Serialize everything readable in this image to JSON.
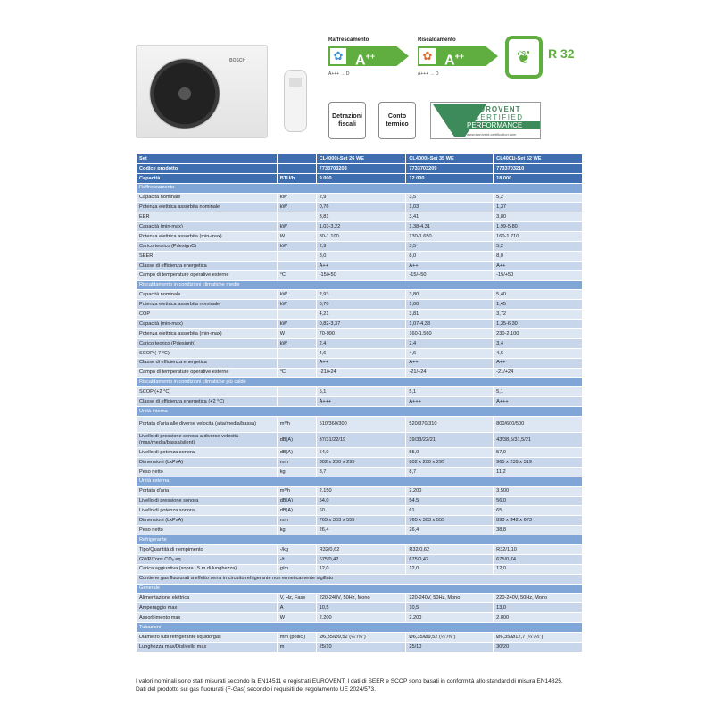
{
  "product_images": {
    "brand": "BOSCH"
  },
  "energy_labels": [
    {
      "title": "Raffrescamento",
      "grade": "A",
      "grade_sup": "++",
      "scale": "A+++ → D",
      "icon": "fan-icon",
      "icon_color": "#3b8fd6"
    },
    {
      "title": "Riscaldamento",
      "grade": "A",
      "grade_sup": "++",
      "scale": "A+++ → D",
      "icon": "fan-icon",
      "icon_color": "#e06a2a"
    }
  ],
  "refrigerant": {
    "label": "R 32",
    "icon": "leaf-icon"
  },
  "badges": [
    "Detrazioni fiscali",
    "Conto termico"
  ],
  "eurovent": {
    "line1": "EUROVENT",
    "line2": "CERTIFIED",
    "line3": "PERFORMANCE",
    "url": "www.eurovent-certification.com"
  },
  "colors": {
    "header": "#3e6eb0",
    "section": "#7fa6d6",
    "row_a": "#dde6f3",
    "row_b": "#c8d6ec",
    "green": "#5fae3f"
  },
  "table": [
    {
      "type": "hdr",
      "cells": [
        "Set",
        "",
        "CL4000i-Set 26 WE",
        "CL4000i-Set 35 WE",
        "CL4001i-Set 52 WE"
      ]
    },
    {
      "type": "hdr",
      "cells": [
        "Codice prodotto",
        "",
        "7733703208",
        "7733703209",
        "7733703210"
      ]
    },
    {
      "type": "hdr",
      "cells": [
        "Capacità",
        "BTU/h",
        "9.000",
        "12.000",
        "18.000"
      ]
    },
    {
      "type": "sec",
      "cells": [
        "Raffrescamento"
      ]
    },
    {
      "type": "d",
      "cells": [
        "Capacità nominale",
        "kW",
        "2,9",
        "3,5",
        "5,2"
      ]
    },
    {
      "type": "d",
      "cells": [
        "Potenza elettrica assorbita nominale",
        "kW",
        "0,76",
        "1,03",
        "1,37"
      ]
    },
    {
      "type": "d",
      "cells": [
        "EER",
        "",
        "3,81",
        "3,41",
        "3,80"
      ]
    },
    {
      "type": "d",
      "cells": [
        "Capacità (min-max)",
        "kW",
        "1,03-3,22",
        "1,38-4,31",
        "1,99-5,80"
      ]
    },
    {
      "type": "d",
      "cells": [
        "Potenza elettrica assorbita (min-max)",
        "W",
        "80-1.100",
        "130-1.650",
        "160-1.710"
      ]
    },
    {
      "type": "d",
      "cells": [
        "Carico teorico (PdesignC)",
        "kW",
        "2,9",
        "3,5",
        "5,2"
      ]
    },
    {
      "type": "d",
      "cells": [
        "SEER",
        "",
        "8,0",
        "8,0",
        "8,0"
      ]
    },
    {
      "type": "d",
      "cells": [
        "Classe di efficienza energetica",
        "",
        "A++",
        "A++",
        "A++"
      ]
    },
    {
      "type": "d",
      "cells": [
        "Campo di temperature operative esterne",
        "°C",
        "-15/+50",
        "-15/+50",
        "-15/+50"
      ]
    },
    {
      "type": "sec",
      "cells": [
        "Riscaldamento in condizioni climatiche medie"
      ]
    },
    {
      "type": "d",
      "cells": [
        "Capacità nominale",
        "kW",
        "2,93",
        "3,80",
        "5,40"
      ]
    },
    {
      "type": "d",
      "cells": [
        "Potenza elettrica assorbita nominale",
        "kW",
        "0,70",
        "1,00",
        "1,45"
      ]
    },
    {
      "type": "d",
      "cells": [
        "COP",
        "",
        "4,21",
        "3,81",
        "3,72"
      ]
    },
    {
      "type": "d",
      "cells": [
        "Capacità (min-max)",
        "kW",
        "0,82-3,37",
        "1,07-4,38",
        "1,35-6,30"
      ]
    },
    {
      "type": "d",
      "cells": [
        "Potenza elettrica assorbita (min-max)",
        "W",
        "70-990",
        "160-1.560",
        "230-2.100"
      ]
    },
    {
      "type": "d",
      "cells": [
        "Carico teorico (Pdesignh)",
        "kW",
        "2,4",
        "2,4",
        "3,4"
      ]
    },
    {
      "type": "d",
      "cells": [
        "SCOP (-7 °C)",
        "",
        "4,6",
        "4,6",
        "4,6"
      ]
    },
    {
      "type": "d",
      "cells": [
        "Classe di efficienza energetica",
        "",
        "A++",
        "A++",
        "A++"
      ]
    },
    {
      "type": "d",
      "cells": [
        "Campo di temperature operative esterne",
        "°C",
        "-21/+24",
        "-21/+24",
        "-21/+24"
      ]
    },
    {
      "type": "sec",
      "cells": [
        "Riscaldamento in condizioni climatiche più calde"
      ]
    },
    {
      "type": "d",
      "cells": [
        "SCOP (+2 °C)",
        "",
        "5,1",
        "5,1",
        "5,1"
      ]
    },
    {
      "type": "d",
      "cells": [
        "Classe di efficienza energetica (+2 °C)",
        "",
        "A+++",
        "A+++",
        "A+++"
      ]
    },
    {
      "type": "sec",
      "cells": [
        "Unità interna"
      ]
    },
    {
      "type": "d",
      "tall": true,
      "cells": [
        "Portata d'aria alle diverse velocità (alta/media/bassa)",
        "m³/h",
        "510/360/300",
        "520/370/310",
        "800/600/500"
      ]
    },
    {
      "type": "d",
      "tall": true,
      "cells": [
        "Livello di pressione sonora a diverse velocità (max/media/bassa/silent)",
        "dB(A)",
        "37/31/22/19",
        "39/33/22/21",
        "43/38,5/31,5/21"
      ]
    },
    {
      "type": "d",
      "cells": [
        "Livello di potenza sonora",
        "dB(A)",
        "54,0",
        "55,0",
        "57,0"
      ]
    },
    {
      "type": "d",
      "cells": [
        "Dimensioni (LxPxA)",
        "mm",
        "802 x 200 x 295",
        "802 x 200 x 295",
        "965 x 239 x 319"
      ]
    },
    {
      "type": "d",
      "cells": [
        "Peso netto",
        "kg",
        "8,7",
        "8,7",
        "11,2"
      ]
    },
    {
      "type": "sec",
      "cells": [
        "Unità esterna"
      ]
    },
    {
      "type": "d",
      "cells": [
        "Portata d'aria",
        "m³/h",
        "2.150",
        "2.200",
        "3.500"
      ]
    },
    {
      "type": "d",
      "cells": [
        "Livello di pressione sonora",
        "dB(A)",
        "54,0",
        "54,5",
        "56,0"
      ]
    },
    {
      "type": "d",
      "cells": [
        "Livello di potenza sonora",
        "dB(A)",
        "60",
        "61",
        "65"
      ]
    },
    {
      "type": "d",
      "cells": [
        "Dimensioni (LxPxA)",
        "mm",
        "765 x 303 x 555",
        "765 x 303 x 555",
        "890 x 342 x 673"
      ]
    },
    {
      "type": "d",
      "cells": [
        "Peso netto",
        "kg",
        "26,4",
        "26,4",
        "38,8"
      ]
    },
    {
      "type": "sec",
      "cells": [
        "Refrigerante"
      ]
    },
    {
      "type": "d",
      "cells": [
        "Tipo/Quantità di riempimento",
        "-/kg",
        "R32/0,62",
        "R32/0,62",
        "R32/1,10"
      ]
    },
    {
      "type": "d",
      "cells": [
        "GWP/Tons CO₂ eq.",
        "-/t",
        "675/0,42",
        "675/0,42",
        "675/0,74"
      ]
    },
    {
      "type": "d",
      "cells": [
        "Carica aggiuntiva (sopra i 5 m di lunghezza)",
        "g/m",
        "12,0",
        "12,0",
        "12,0"
      ]
    },
    {
      "type": "full",
      "cells": [
        "Contiene gas fluorurati a effetto serra in circuito refrigerante non ermeticamente sigillato"
      ]
    },
    {
      "type": "sec",
      "cells": [
        "Generale"
      ]
    },
    {
      "type": "d",
      "cells": [
        "Alimentazione elettrica",
        "V, Hz, Fase",
        "220-240V, 50Hz, Mono",
        "220-240V, 50Hz, Mono",
        "220-240V, 50Hz, Mono"
      ]
    },
    {
      "type": "d",
      "cells": [
        "Amperaggio max",
        "A",
        "10,5",
        "10,5",
        "13,0"
      ]
    },
    {
      "type": "d",
      "cells": [
        "Assorbimento max",
        "W",
        "2.200",
        "2.200",
        "2.800"
      ]
    },
    {
      "type": "sec",
      "cells": [
        "Tubazioni"
      ]
    },
    {
      "type": "d",
      "cells": [
        "Diametro tubi refrigerante liquido/gas",
        "mm (pollici)",
        "Ø6,35/Ø9,52 (¼\"/⅜\")",
        "Ø6,35/Ø9,52 (¼\"/⅜\")",
        "Ø6,35/Ø12,7 (¼\"/½\")"
      ]
    },
    {
      "type": "d",
      "cells": [
        "Lunghezza max/Dislivello max",
        "m",
        "25/10",
        "25/10",
        "30/20"
      ]
    }
  ],
  "notes": [
    "I valori nominali sono stati misurati secondo la EN14511 e registrati EUROVENT. I dati di SEER e SCOP sono basati in conformità allo standard di misura EN14825.",
    "Dati del prodotto sui gas fluorurati (F-Gas) secondo i requisiti del regolamento UE 2024/573."
  ]
}
